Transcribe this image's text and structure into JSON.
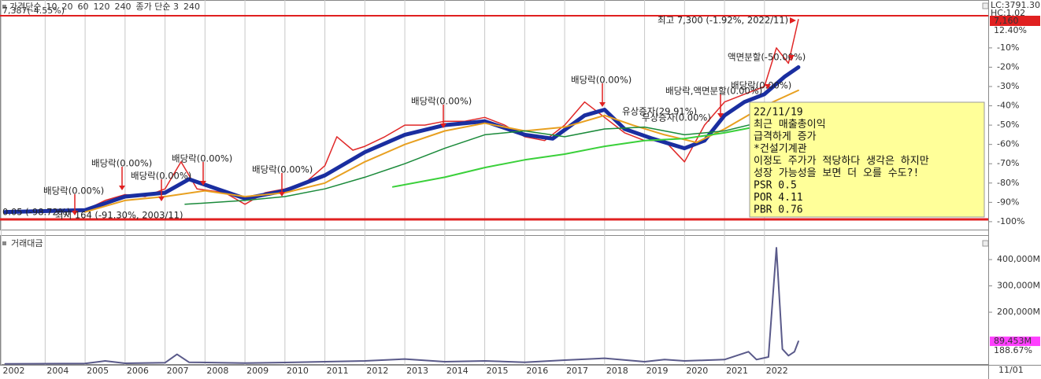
{
  "chart_data": [
    {
      "type": "line",
      "header": [
        {
          "text": "가격단순",
          "color": "#d02020"
        },
        {
          "text": "10",
          "color": "#202020"
        },
        {
          "text": "20",
          "color": "#e8a020"
        },
        {
          "text": "60",
          "color": "#1a8a3a"
        },
        {
          "text": "120",
          "color": "#20a040"
        },
        {
          "text": "240",
          "color": "#20b8c8"
        },
        {
          "text": "종가 단순 3",
          "color": "#b040b0"
        },
        {
          "text": "240",
          "color": "#20b8c8"
        }
      ],
      "top_left_label": "7,387(-4.55%)",
      "xlim": [
        2002.87,
        2027.6
      ],
      "xticks": [
        {
          "value": 2002.9,
          "label": "2002"
        },
        2004,
        2005,
        2006,
        2007,
        2008,
        2009,
        2010,
        2011,
        2012,
        2013,
        2014,
        2015,
        2016,
        2017,
        2018,
        2019,
        2020,
        2021,
        2022
      ],
      "x_end_label": "11/01",
      "ylim": [
        -103.3,
        14.8
      ],
      "yticks": [
        {
          "value": -10,
          "label": "-10%"
        },
        {
          "value": -20,
          "label": "-20%"
        },
        {
          "value": -30,
          "label": "-30%"
        },
        {
          "value": -40,
          "label": "-40%"
        },
        {
          "value": -50,
          "label": "-50%"
        },
        {
          "value": -60,
          "label": "-60%"
        },
        {
          "value": -70,
          "label": "-70%"
        },
        {
          "value": -80,
          "label": "-80%"
        },
        {
          "value": -90,
          "label": "-90%"
        },
        {
          "value": -100,
          "label": "-100%"
        }
      ],
      "series": [
        {
          "color": "#e02828",
          "width": 1.5,
          "x": [
            2003,
            2004,
            2005,
            2005.5,
            2006,
            2006.5,
            2007,
            2007.4,
            2007.8,
            2008.5,
            2009,
            2009.5,
            2010,
            2010.5,
            2011,
            2011.3,
            2011.7,
            2012,
            2012.5,
            2013,
            2013.5,
            2014,
            2014.5,
            2015,
            2015.5,
            2016,
            2016.5,
            2017,
            2017.5,
            2018,
            2018.5,
            2019,
            2019.5,
            2020,
            2020.5,
            2021,
            2021.5,
            2022,
            2022.3,
            2022.6,
            2022.85
          ],
          "values": [
            -95.1,
            -95,
            -94,
            -89,
            -86,
            -87,
            -83,
            -69,
            -83,
            -85,
            -91,
            -85,
            -83,
            -80,
            -71,
            -56,
            -63,
            -61,
            -56,
            -50,
            -50,
            -48,
            -48,
            -46,
            -50,
            -56,
            -58,
            -50,
            -38,
            -46,
            -54,
            -58,
            -58,
            -69,
            -50,
            -38,
            -34,
            -30,
            -10,
            -18,
            4.7
          ]
        },
        {
          "color": "#1a2ea0",
          "width": 5,
          "x": [
            2003,
            2005,
            2006,
            2007,
            2007.6,
            2008.3,
            2009,
            2010,
            2011,
            2012,
            2013,
            2014,
            2015,
            2016,
            2016.7,
            2017.5,
            2018,
            2018.5,
            2019.2,
            2020,
            2020.5,
            2021,
            2021.5,
            2022,
            2022.5,
            2022.85
          ],
          "values": [
            -95,
            -94,
            -87,
            -85,
            -78,
            -83,
            -88,
            -84,
            -76,
            -64,
            -55,
            -50,
            -48,
            -55,
            -57,
            -45,
            -42,
            -52,
            -57,
            -62,
            -58,
            -45,
            -38,
            -34,
            -25,
            -20
          ]
        },
        {
          "color": "#e8a020",
          "width": 2,
          "x": [
            2005,
            2006,
            2007,
            2008,
            2009,
            2010,
            2011,
            2012,
            2013,
            2014,
            2015,
            2016,
            2017,
            2018,
            2018.7,
            2019.5,
            2020.3,
            2021,
            2022,
            2022.85
          ],
          "values": [
            -95,
            -89,
            -87,
            -84,
            -87,
            -85,
            -80,
            -69,
            -60,
            -53,
            -49,
            -53,
            -51,
            -45,
            -50,
            -55,
            -59,
            -52,
            -40,
            -32
          ]
        },
        {
          "color": "#1a8a3a",
          "width": 1.5,
          "x": [
            2007.5,
            2009,
            2010,
            2011,
            2012,
            2013,
            2014,
            2015,
            2016,
            2017,
            2018,
            2019,
            2020,
            2021,
            2022
          ],
          "values": [
            -91,
            -89,
            -87,
            -83,
            -77,
            -70,
            -62,
            -55,
            -53,
            -56,
            -52,
            -51,
            -55,
            -53,
            -48
          ]
        },
        {
          "color": "#3ad03a",
          "width": 2,
          "x": [
            2012.7,
            2014,
            2015,
            2016,
            2017,
            2018,
            2019,
            2020,
            2021,
            2022
          ],
          "values": [
            -82,
            -77,
            -72,
            -68,
            -65,
            -61,
            -58,
            -57,
            -54,
            -50
          ]
        }
      ],
      "annotations": [
        "배당락(0.00%)",
        "배당락(0.00%)",
        "배당락(0.00%)",
        "배당락(0.00%)",
        "배당락(0.00%)",
        "배당락(0.00%)",
        "배당락,액면분할(0.00%)",
        "배당락(0.00%)",
        "액면분할(-50.00%)",
        "배당락(0.00%)",
        "최고 7,300 (-1.92%, 2022/11)",
        "0.05 (-98.72%)",
        "최저 164 (-91.30%, 2003/11)",
        "유상증자(29.91%)",
        "무상증자(0.00%)"
      ],
      "note": [
        "22/11/19",
        "최근 매출총이익",
        "급격하게 증가",
        "*건설기계관",
        "이정도 주가가 적당하다 생각은 하지만",
        "성장 가능성을 보면 더 오를 수도?!",
        "PSR 0.5",
        "POR 4.11",
        "PBR 0.76"
      ],
      "right_tags": [
        "LC:3791.30",
        "HC:1.02",
        "7,160",
        "12.40%"
      ]
    },
    {
      "type": "line",
      "title": "거래대금",
      "xlim": [
        2002.87,
        2027.6
      ],
      "ylim": [
        0,
        490000
      ],
      "yticks": [
        {
          "value": 200000,
          "label": "200,000M"
        },
        {
          "value": 300000,
          "label": "300,000M"
        },
        {
          "value": 400000,
          "label": "400,000M"
        }
      ],
      "series": [
        {
          "color": "#5a5a8a",
          "width": 2,
          "x": [
            2003,
            2005,
            2005.5,
            2006,
            2007,
            2007.3,
            2007.6,
            2009,
            2010,
            2011,
            2012,
            2013,
            2014,
            2015,
            2016,
            2017,
            2018,
            2019,
            2019.5,
            2020,
            2021,
            2021.6,
            2021.8,
            2022.1,
            2022.3,
            2022.45,
            2022.6,
            2022.75,
            2022.85
          ],
          "values": [
            4000,
            5000,
            15000,
            6000,
            8000,
            40000,
            10000,
            7000,
            9000,
            12000,
            15000,
            22000,
            12000,
            15000,
            10000,
            18000,
            25000,
            12000,
            20000,
            15000,
            20000,
            50000,
            20000,
            30000,
            445000,
            60000,
            35000,
            50000,
            89453
          ]
        }
      ],
      "last_value": {
        "value": 89453,
        "label": "89,453M"
      },
      "change_label": "188.67%"
    }
  ]
}
